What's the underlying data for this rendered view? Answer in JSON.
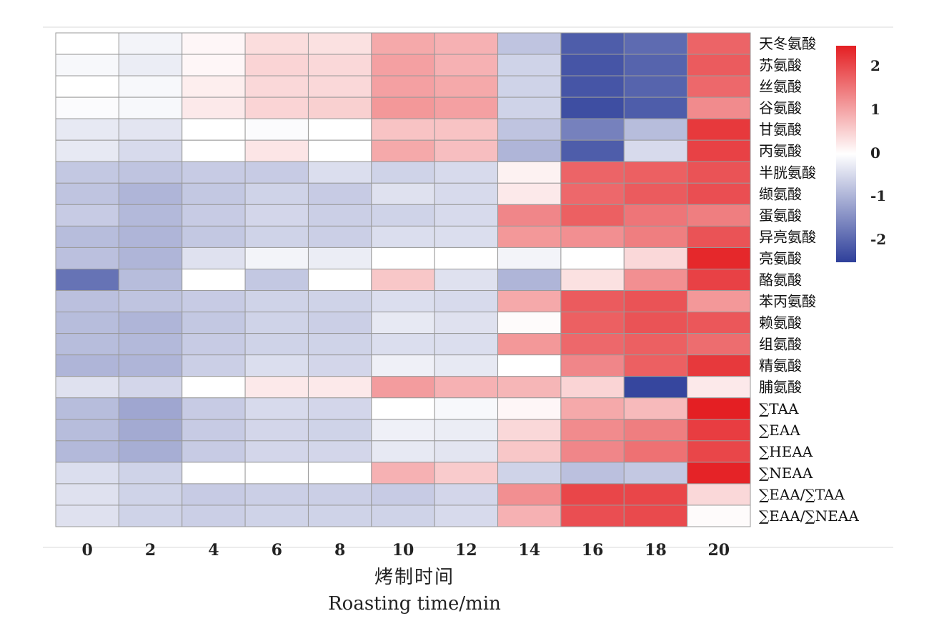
{
  "chart_data": {
    "type": "heatmap",
    "x_categories": [
      "0",
      "2",
      "4",
      "6",
      "8",
      "10",
      "12",
      "14",
      "16",
      "18",
      "20"
    ],
    "y_categories": [
      "天冬氨酸",
      "苏氨酸",
      "丝氨酸",
      "谷氨酸",
      "甘氨酸",
      "丙氨酸",
      "半胱氨酸",
      "缬氨酸",
      "蛋氨酸",
      "异亮氨酸",
      "亮氨酸",
      "酪氨酸",
      "苯丙氨酸",
      "赖氨酸",
      "组氨酸",
      "精氨酸",
      "脯氨酸",
      "∑TAA",
      "∑EAA",
      "∑HEAA",
      "∑NEAA",
      "∑EAA/∑TAA",
      "∑EAA/∑NEAA"
    ],
    "values": [
      [
        0.0,
        -0.15,
        0.1,
        0.4,
        0.35,
        1.0,
        0.9,
        -0.8,
        -2.2,
        -2.0,
        1.8
      ],
      [
        -0.1,
        -0.25,
        0.1,
        0.5,
        0.45,
        1.1,
        0.9,
        -0.6,
        -2.3,
        -2.1,
        1.9
      ],
      [
        0.0,
        -0.1,
        0.2,
        0.45,
        0.45,
        1.1,
        1.0,
        -0.6,
        -2.3,
        -2.1,
        1.75
      ],
      [
        -0.05,
        -0.1,
        0.25,
        0.5,
        0.55,
        1.2,
        1.1,
        -0.6,
        -2.4,
        -2.2,
        1.35
      ],
      [
        -0.3,
        -0.35,
        0.0,
        -0.05,
        0.0,
        0.7,
        0.7,
        -0.8,
        -1.7,
        -0.9,
        2.3
      ],
      [
        -0.3,
        -0.5,
        0.0,
        0.3,
        0.0,
        1.0,
        0.75,
        -1.0,
        -2.2,
        -0.5,
        2.2
      ],
      [
        -0.75,
        -0.8,
        -0.7,
        -0.7,
        -0.45,
        -0.6,
        -0.5,
        0.15,
        1.8,
        1.85,
        2.0
      ],
      [
        -0.8,
        -1.0,
        -0.75,
        -0.6,
        -0.7,
        -0.4,
        -0.5,
        0.25,
        1.75,
        1.9,
        2.05
      ],
      [
        -0.7,
        -0.95,
        -0.7,
        -0.55,
        -0.65,
        -0.6,
        -0.5,
        1.4,
        1.85,
        1.6,
        1.5
      ],
      [
        -0.9,
        -1.0,
        -0.75,
        -0.6,
        -0.65,
        -0.45,
        -0.45,
        1.2,
        1.3,
        1.5,
        2.0
      ],
      [
        -0.85,
        -1.0,
        -0.4,
        -0.15,
        -0.25,
        0.0,
        0.0,
        -0.15,
        0.0,
        0.45,
        2.5
      ],
      [
        -1.9,
        -0.9,
        0.0,
        -0.75,
        0.0,
        0.65,
        -0.4,
        -1.0,
        0.35,
        1.3,
        2.2
      ],
      [
        -0.85,
        -0.8,
        -0.7,
        -0.6,
        -0.6,
        -0.45,
        -0.5,
        1.0,
        1.9,
        2.0,
        1.2
      ],
      [
        -0.9,
        -1.0,
        -0.75,
        -0.6,
        -0.65,
        -0.3,
        -0.4,
        0.05,
        1.85,
        2.0,
        1.95
      ],
      [
        -0.9,
        -0.95,
        -0.7,
        -0.6,
        -0.6,
        -0.45,
        -0.45,
        1.2,
        1.75,
        1.85,
        1.7
      ],
      [
        -1.0,
        -1.0,
        -0.65,
        -0.45,
        -0.55,
        -0.2,
        -0.3,
        0.0,
        1.4,
        1.85,
        2.3
      ],
      [
        -0.4,
        -0.55,
        0.0,
        0.25,
        0.25,
        1.15,
        0.9,
        0.85,
        0.5,
        -2.5,
        0.25
      ],
      [
        -0.9,
        -1.2,
        -0.7,
        -0.5,
        -0.55,
        0.0,
        -0.1,
        0.1,
        1.0,
        0.8,
        2.6
      ],
      [
        -0.9,
        -1.15,
        -0.7,
        -0.55,
        -0.6,
        -0.2,
        -0.25,
        0.45,
        1.35,
        1.5,
        2.25
      ],
      [
        -0.95,
        -1.1,
        -0.7,
        -0.55,
        -0.55,
        -0.3,
        -0.35,
        0.65,
        1.4,
        1.65,
        2.15
      ],
      [
        -0.45,
        -0.6,
        0.0,
        0.0,
        0.0,
        0.9,
        0.6,
        -0.6,
        -0.85,
        -0.75,
        2.55
      ],
      [
        -0.4,
        -0.6,
        -0.7,
        -0.65,
        -0.65,
        -0.7,
        -0.55,
        1.3,
        2.15,
        2.15,
        0.45
      ],
      [
        -0.4,
        -0.6,
        -0.65,
        -0.6,
        -0.6,
        -0.6,
        -0.5,
        0.9,
        2.05,
        2.1,
        0.05
      ]
    ],
    "color_scale": {
      "min_color": "#2e3f9a",
      "mid_color": "#ffffff",
      "max_color": "#e41f23",
      "range": [
        -2.6,
        2.6
      ]
    },
    "colorbar_ticks": [
      "2",
      "1",
      "0",
      "-1",
      "-2"
    ],
    "xlabel": [
      "烤制时间",
      "Roasting time/min"
    ]
  }
}
